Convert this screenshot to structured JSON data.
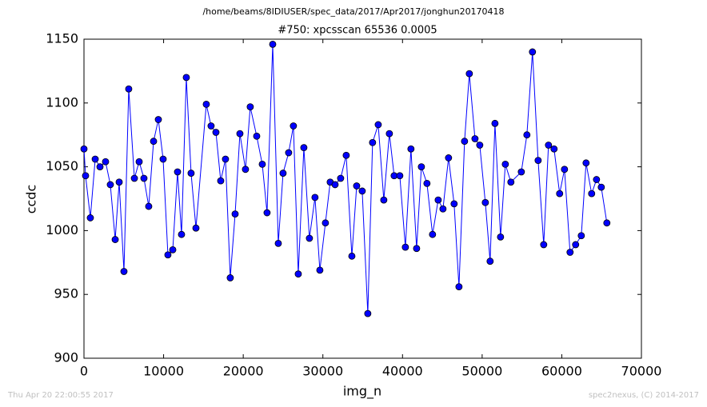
{
  "chart_data": {
    "type": "line",
    "title": "/home/beams/8IDIUSER/spec_data/2017/Apr2017/jonghun20170418",
    "subtitle": "#750: xpcsscan 65536 0.0005",
    "xlabel": "img_n",
    "ylabel": "ccdc",
    "footer_left": "Thu Apr 20 22:00:55 2017",
    "footer_right": "spec2nexus, (C) 2014-2017",
    "color": "#0000ff",
    "marker": "o",
    "x": [
      0,
      200,
      800,
      1410,
      2010,
      2710,
      3310,
      3920,
      4420,
      5020,
      5620,
      6330,
      6930,
      7530,
      8130,
      8740,
      9340,
      9940,
      10540,
      11150,
      11750,
      12250,
      12850,
      13450,
      14060,
      15360,
      15960,
      16570,
      17170,
      17770,
      18370,
      18980,
      19580,
      20280,
      20880,
      21690,
      22390,
      22990,
      23700,
      24400,
      25000,
      25700,
      26300,
      26910,
      27610,
      28310,
      29010,
      29620,
      30320,
      30920,
      31530,
      32230,
      32930,
      33640,
      34240,
      34940,
      35640,
      36240,
      36950,
      37650,
      38350,
      38950,
      39660,
      40360,
      41060,
      41770,
      42370,
      43070,
      43770,
      44480,
      45080,
      45780,
      46480,
      47090,
      47790,
      48390,
      49100,
      49700,
      50400,
      51000,
      51610,
      52310,
      52910,
      53610,
      54920,
      55620,
      56320,
      57030,
      57730,
      58330,
      59030,
      59730,
      60340,
      61040,
      61740,
      62450,
      63050,
      63750,
      64360,
      64960,
      65660
    ],
    "values": [
      1064,
      1043,
      1010,
      1056,
      1050,
      1054,
      1036,
      993,
      1038,
      968,
      1111,
      1041,
      1054,
      1041,
      1019,
      1070,
      1087,
      1056,
      981,
      985,
      1046,
      997,
      1120,
      1045,
      1002,
      1099,
      1082,
      1077,
      1039,
      1056,
      963,
      1013,
      1076,
      1048,
      1097,
      1074,
      1052,
      1014,
      1146,
      990,
      1045,
      1061,
      1082,
      966,
      1065,
      994,
      1026,
      969,
      1006,
      1038,
      1036,
      1041,
      1059,
      980,
      1035,
      1031,
      935,
      1069,
      1083,
      1024,
      1076,
      1043,
      1043,
      987,
      1064,
      986,
      1050,
      1037,
      997,
      1024,
      1017,
      1057,
      1021,
      956,
      1070,
      1123,
      1072,
      1067,
      1022,
      976,
      1084,
      995,
      1052,
      1038,
      1046,
      1075,
      1140,
      1055,
      989,
      1067,
      1064,
      1029,
      1048,
      983,
      989,
      996,
      1053,
      1029,
      1040,
      1034,
      1006
    ],
    "xlim": [
      0,
      70000
    ],
    "xticks": [
      0,
      10000,
      20000,
      30000,
      40000,
      50000,
      60000,
      70000
    ],
    "ylim": [
      900,
      1150
    ],
    "yticks": [
      900,
      950,
      1000,
      1050,
      1100,
      1150
    ]
  }
}
